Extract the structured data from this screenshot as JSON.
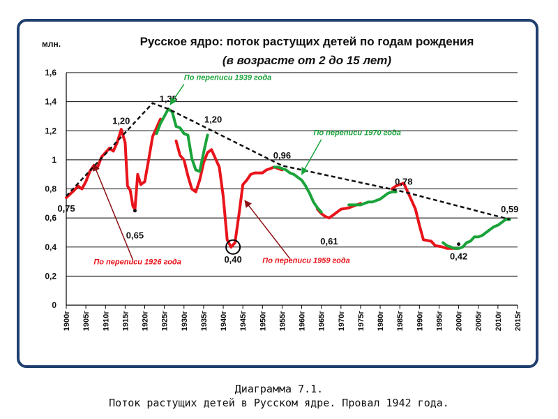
{
  "chart_data": {
    "type": "line",
    "title": "Русское ядро: поток растущих детей по годам рождения",
    "subtitle": "(в возрасте от 2 до 15 лет)",
    "ylabel": "млн.",
    "ylim": [
      0,
      1.6
    ],
    "yticks": [
      0,
      0.2,
      0.4,
      0.6,
      0.8,
      1,
      1.2,
      1.4,
      1.6
    ],
    "ytick_labels": [
      "0",
      "0,2",
      "0,4",
      "0,6",
      "0,8",
      "1",
      "1,2",
      "1,4",
      "1,6"
    ],
    "xlim": [
      1900,
      2015
    ],
    "xticks": [
      1900,
      1905,
      1910,
      1915,
      1920,
      1925,
      1930,
      1935,
      1940,
      1945,
      1950,
      1955,
      1960,
      1965,
      1970,
      1975,
      1980,
      1985,
      1990,
      1995,
      2000,
      2005,
      2010,
      2015
    ],
    "xtick_labels": [
      "1900г",
      "1905г",
      "1910г",
      "1915г",
      "1920г",
      "1925г",
      "1930г",
      "1935г",
      "1940г",
      "1945г",
      "1950г",
      "1955г",
      "1960г",
      "1965г",
      "1970г",
      "1975г",
      "1980г",
      "1985г",
      "1990г",
      "1995г",
      "2000г",
      "2005г",
      "2010г",
      "2015г"
    ],
    "grid": "horizontal",
    "colors": {
      "red": "#e8141b",
      "green": "#1aa33a",
      "envelope": "#111111",
      "annotation_red": "#e8141b",
      "annotation_green": "#1aa33a"
    },
    "series": [
      {
        "color": "red",
        "segments": [
          [
            [
              1900,
              0.74
            ],
            [
              1902,
              0.79
            ],
            [
              1903,
              0.82
            ],
            [
              1904,
              0.8
            ],
            [
              1905,
              0.85
            ],
            [
              1906,
              0.92
            ],
            [
              1907,
              0.96
            ],
            [
              1908,
              0.95
            ],
            [
              1909,
              1.02
            ],
            [
              1910,
              1.05
            ],
            [
              1911,
              1.08
            ],
            [
              1912,
              1.06
            ],
            [
              1913,
              1.12
            ],
            [
              1914,
              1.21
            ],
            [
              1915,
              1.12
            ],
            [
              1915.6,
              0.82
            ],
            [
              1916.3,
              0.79
            ],
            [
              1917,
              0.68
            ],
            [
              1917.5,
              0.66
            ],
            [
              1918.2,
              0.9
            ],
            [
              1919,
              0.83
            ],
            [
              1920,
              0.85
            ],
            [
              1921,
              1.0
            ],
            [
              1922,
              1.16
            ],
            [
              1923,
              1.22
            ],
            [
              1924,
              1.28
            ]
          ],
          [
            [
              1928,
              1.13
            ],
            [
              1929,
              1.03
            ],
            [
              1930,
              1.0
            ],
            [
              1931,
              0.89
            ],
            [
              1932,
              0.8
            ],
            [
              1933,
              0.78
            ],
            [
              1934,
              0.86
            ],
            [
              1935,
              0.98
            ],
            [
              1936,
              1.05
            ],
            [
              1937,
              1.07
            ],
            [
              1938,
              1.01
            ],
            [
              1939,
              0.95
            ],
            [
              1940,
              0.75
            ],
            [
              1941,
              0.45
            ],
            [
              1942,
              0.4
            ],
            [
              1943,
              0.43
            ],
            [
              1944,
              0.62
            ],
            [
              1945,
              0.83
            ],
            [
              1946,
              0.86
            ],
            [
              1947,
              0.9
            ],
            [
              1948,
              0.91
            ],
            [
              1949,
              0.91
            ],
            [
              1950,
              0.91
            ],
            [
              1951,
              0.93
            ],
            [
              1952,
              0.94
            ],
            [
              1953,
              0.95
            ],
            [
              1954,
              0.94
            ],
            [
              1955,
              0.93
            ]
          ],
          [
            [
              1964,
              0.66
            ],
            [
              1965,
              0.63
            ],
            [
              1966,
              0.61
            ],
            [
              1967,
              0.6
            ],
            [
              1968,
              0.62
            ],
            [
              1969,
              0.64
            ],
            [
              1970,
              0.66
            ],
            [
              1972,
              0.67
            ],
            [
              1973,
              0.68
            ],
            [
              1975,
              0.7
            ]
          ],
          [
            [
              1983,
              0.8
            ],
            [
              1984,
              0.82
            ],
            [
              1985,
              0.83
            ],
            [
              1986,
              0.84
            ],
            [
              1987,
              0.78
            ],
            [
              1988,
              0.72
            ],
            [
              1989,
              0.66
            ],
            [
              1990,
              0.55
            ],
            [
              1991,
              0.45
            ],
            [
              1993,
              0.44
            ],
            [
              1994,
              0.41
            ],
            [
              1996,
              0.4
            ],
            [
              1997,
              0.39
            ],
            [
              1998,
              0.39
            ],
            [
              1999,
              0.39
            ],
            [
              2000,
              0.39
            ]
          ]
        ]
      },
      {
        "color": "green",
        "segments": [
          [
            [
              1923,
              1.18
            ],
            [
              1924,
              1.25
            ],
            [
              1925,
              1.3
            ],
            [
              1926,
              1.35
            ],
            [
              1927,
              1.33
            ],
            [
              1928,
              1.23
            ],
            [
              1929,
              1.22
            ],
            [
              1930,
              1.18
            ],
            [
              1931,
              1.17
            ],
            [
              1932,
              1.01
            ],
            [
              1933,
              0.93
            ],
            [
              1934,
              0.92
            ],
            [
              1935,
              1.05
            ],
            [
              1936,
              1.17
            ]
          ],
          [
            [
              1953,
              0.95
            ],
            [
              1954,
              0.95
            ],
            [
              1955,
              0.94
            ],
            [
              1956,
              0.93
            ],
            [
              1957,
              0.91
            ],
            [
              1958,
              0.9
            ],
            [
              1959,
              0.88
            ],
            [
              1960,
              0.86
            ],
            [
              1961,
              0.82
            ],
            [
              1962,
              0.77
            ],
            [
              1963,
              0.71
            ],
            [
              1964,
              0.67
            ],
            [
              1965,
              0.64
            ]
          ],
          [
            [
              1972,
              0.69
            ],
            [
              1974,
              0.69
            ],
            [
              1975,
              0.69
            ],
            [
              1976,
              0.7
            ],
            [
              1977,
              0.71
            ],
            [
              1978,
              0.71
            ],
            [
              1979,
              0.72
            ],
            [
              1980,
              0.73
            ],
            [
              1981,
              0.75
            ],
            [
              1982,
              0.77
            ],
            [
              1983,
              0.78
            ],
            [
              1984,
              0.78
            ]
          ],
          [
            [
              1996,
              0.43
            ],
            [
              1997,
              0.41
            ],
            [
              1998,
              0.4
            ],
            [
              1999,
              0.39
            ],
            [
              2000,
              0.39
            ],
            [
              2001,
              0.4
            ],
            [
              2002,
              0.43
            ],
            [
              2003,
              0.44
            ],
            [
              2004,
              0.47
            ],
            [
              2005,
              0.47
            ],
            [
              2006,
              0.48
            ],
            [
              2007,
              0.5
            ],
            [
              2008,
              0.52
            ],
            [
              2009,
              0.54
            ],
            [
              2010,
              0.55
            ],
            [
              2011,
              0.57
            ],
            [
              2012,
              0.59
            ],
            [
              2013,
              0.59
            ]
          ]
        ]
      }
    ],
    "envelope": [
      [
        1900,
        0.75
      ],
      [
        1922,
        1.39
      ],
      [
        1926,
        1.35
      ],
      [
        1955,
        0.96
      ],
      [
        1986,
        0.78
      ],
      [
        2013,
        0.59
      ]
    ],
    "dots": [
      [
        1917.5,
        0.65
      ],
      [
        2000,
        0.42
      ]
    ],
    "highlight_circle": [
      1942.5,
      0.4
    ],
    "data_labels": [
      {
        "text": "0,75",
        "x": 1900,
        "y": 0.75,
        "pos": "below"
      },
      {
        "text": "1,20",
        "x": 1914,
        "y": 1.2,
        "pos": "above"
      },
      {
        "text": "0,65",
        "x": 1917.5,
        "y": 0.65,
        "pos": "below-far"
      },
      {
        "text": "1,35",
        "x": 1926,
        "y": 1.35,
        "pos": "above"
      },
      {
        "text": "1,20",
        "x": 1936,
        "y": 1.2,
        "pos": "above-right"
      },
      {
        "text": "0,40",
        "x": 1942.5,
        "y": 0.4,
        "pos": "below"
      },
      {
        "text": "0,96",
        "x": 1955,
        "y": 0.96,
        "pos": "above"
      },
      {
        "text": "0,61",
        "x": 1967,
        "y": 0.61,
        "pos": "below-far"
      },
      {
        "text": "0,78",
        "x": 1986,
        "y": 0.78,
        "pos": "above"
      },
      {
        "text": "0,42",
        "x": 2000,
        "y": 0.42,
        "pos": "below"
      },
      {
        "text": "0,59",
        "x": 2013,
        "y": 0.59,
        "pos": "above"
      }
    ],
    "annotations": [
      {
        "text": "По переписи 1939 года",
        "color": "green",
        "at": [
          1930,
          1.55
        ],
        "arrow_from": [
          1930,
          1.52
        ],
        "arrow_to": [
          1926.5,
          1.38
        ]
      },
      {
        "text": "По переписи 1970 года",
        "color": "green",
        "at": [
          1963,
          1.17
        ],
        "arrow_from": [
          1965,
          1.14
        ],
        "arrow_to": [
          1960,
          0.9
        ]
      },
      {
        "text": "По переписи 1926 года",
        "color": "red",
        "at": [
          1907,
          0.28
        ],
        "arrow_from": [
          1917,
          0.31
        ],
        "arrow_to": [
          1907,
          0.97
        ]
      },
      {
        "text": "По переписи 1959 года",
        "color": "red",
        "at": [
          1950,
          0.29
        ],
        "arrow_from": [
          1957,
          0.32
        ],
        "arrow_to": [
          1945.5,
          0.72
        ]
      }
    ]
  },
  "caption": {
    "line1": "Диаграмма 7.1.",
    "line2": "Поток растущих детей в Русском ядре. Провал 1942 года."
  }
}
